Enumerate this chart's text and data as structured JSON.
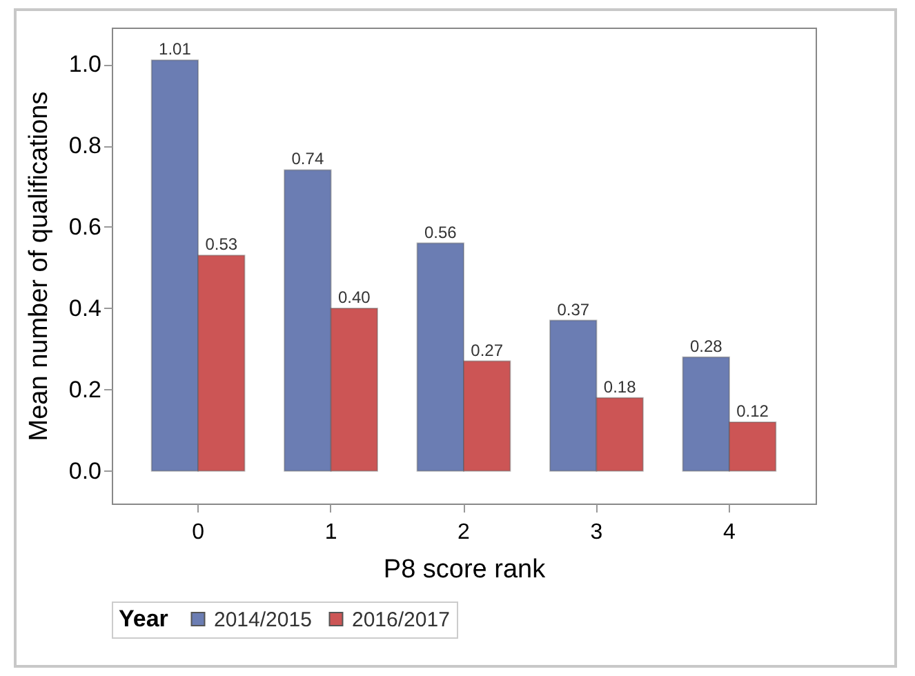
{
  "chart_data": {
    "type": "bar",
    "xlabel": "P8 score rank",
    "ylabel": "Mean number of qualifications",
    "legend_title": "Year",
    "categories": [
      "0",
      "1",
      "2",
      "3",
      "4"
    ],
    "series": [
      {
        "name": "2014/2015",
        "color": "#6b7db3",
        "values": [
          1.01,
          0.74,
          0.56,
          0.37,
          0.28
        ],
        "value_labels": [
          "1.01",
          "0.74",
          "0.56",
          "0.37",
          "0.28"
        ]
      },
      {
        "name": "2016/2017",
        "color": "#cc5555",
        "values": [
          0.53,
          0.4,
          0.27,
          0.18,
          0.12
        ],
        "value_labels": [
          "0.53",
          "0.40",
          "0.27",
          "0.18",
          "0.12"
        ]
      }
    ],
    "ylim": [
      -0.08,
      1.09
    ],
    "yticks": [
      "0.0",
      "0.2",
      "0.4",
      "0.6",
      "0.8",
      "1.0"
    ],
    "grid": false,
    "legend": "bottom"
  }
}
